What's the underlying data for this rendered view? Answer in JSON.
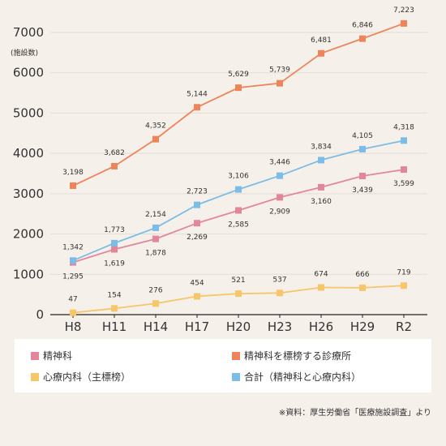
{
  "chart_data": {
    "type": "line",
    "categories": [
      "H8",
      "H11",
      "H14",
      "H17",
      "H20",
      "H23",
      "H26",
      "H29",
      "R2"
    ],
    "ylim": [
      0,
      7000
    ],
    "yticks": [
      0,
      1000,
      2000,
      3000,
      4000,
      5000,
      6000,
      7000
    ],
    "ytick_labels": [
      "0",
      "1000",
      "2000",
      "3000",
      "4000",
      "5000",
      "6000",
      "7000"
    ],
    "unit_label": "(施設数)",
    "grid": true,
    "series": [
      {
        "name": "精神科",
        "color": "#e3869a",
        "values": [
          1295,
          1619,
          1878,
          2269,
          2585,
          2909,
          3160,
          3439,
          3599
        ],
        "labels": [
          "1,295",
          "1,619",
          "1,878",
          "2,269",
          "2,585",
          "2,909",
          "3,160",
          "3,439",
          "3,599"
        ]
      },
      {
        "name": "精神科を標榜する診療所",
        "color": "#ee8459",
        "values": [
          3198,
          3682,
          4352,
          5144,
          5629,
          5739,
          6481,
          6846,
          7223
        ],
        "labels": [
          "3,198",
          "3,682",
          "4,352",
          "5,144",
          "5,629",
          "5,739",
          "6,481",
          "6,846",
          "7,223"
        ]
      },
      {
        "name": "心療内科（主標榜）",
        "color": "#f7c56a",
        "values": [
          47,
          154,
          276,
          454,
          521,
          537,
          674,
          666,
          719
        ],
        "labels": [
          "47",
          "154",
          "276",
          "454",
          "521",
          "537",
          "674",
          "666",
          "719"
        ]
      },
      {
        "name": "合計（精神科と心療内科）",
        "color": "#7bbde6",
        "values": [
          1342,
          1773,
          2154,
          2723,
          3106,
          3446,
          3834,
          4105,
          4318
        ],
        "labels": [
          "1,342",
          "1,773",
          "2,154",
          "2,723",
          "3,106",
          "3,446",
          "3,834",
          "4,105",
          "4,318"
        ]
      }
    ],
    "legend": [
      "精神科",
      "精神科を標榜する診療所",
      "心療内科（主標榜）",
      "合計（精神科と心療内科）"
    ],
    "legend_placement": "bottom"
  },
  "source_note": "※資料：厚生労働省「医療施設調査」より"
}
